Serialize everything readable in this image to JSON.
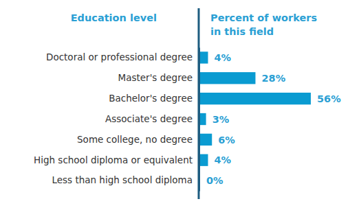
{
  "chart_data": {
    "type": "bar",
    "orientation": "horizontal",
    "y_label": "Education level",
    "x_label": "Percent of workers in this field",
    "categories": [
      "Doctoral or professional degree",
      "Master's degree",
      "Bachelor's degree",
      "Associate's degree",
      "Some college, no degree",
      "High school diploma or equivalent",
      "Less than high school diploma"
    ],
    "values": [
      4,
      28,
      56,
      3,
      6,
      4,
      0
    ],
    "value_labels": [
      "4%",
      "28%",
      "56%",
      "3%",
      "6%",
      "4%",
      "0%"
    ],
    "color": "#0a9bd1",
    "data_labels": true,
    "tick_labels": "y"
  }
}
